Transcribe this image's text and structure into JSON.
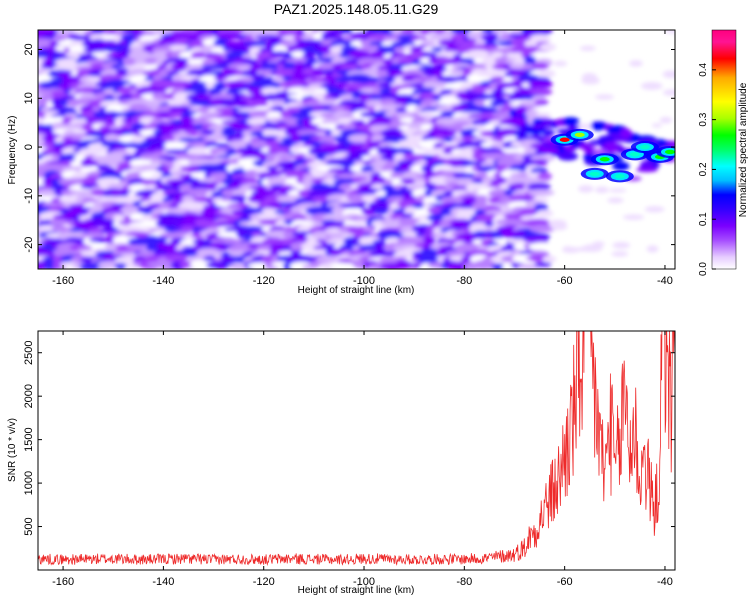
{
  "chart_data": [
    {
      "type": "heatmap",
      "title": "PAZ1.2025.148.05.11.G29",
      "xlabel": "Height of straight line (km)",
      "ylabel": "Frequency (Hz)",
      "xlim": [
        -165,
        -38
      ],
      "ylim": [
        -25,
        24
      ],
      "xticks": [
        -160,
        -140,
        -120,
        -100,
        -80,
        -60,
        -40
      ],
      "yticks": [
        -20,
        -10,
        0,
        10,
        20
      ],
      "data_extent_x": [
        -165,
        -64
      ],
      "colorbar": {
        "label": "Normalized spectral amplitude",
        "range": [
          0,
          0.48
        ],
        "ticks": [
          0.0,
          0.1,
          0.2,
          0.3,
          0.4
        ],
        "colors": [
          "#ffffff",
          "#e6ccff",
          "#a64dff",
          "#7a00ff",
          "#3300ff",
          "#0000ff",
          "#00bfff",
          "#00ffff",
          "#00ff66",
          "#00ff00",
          "#aaff00",
          "#ffff00",
          "#ffaa00",
          "#ff0000",
          "#ff1493",
          "#ff007f"
        ]
      },
      "hotspots": [
        {
          "x": -60,
          "y": 1.5,
          "value": 0.45
        },
        {
          "x": -57,
          "y": 2.5,
          "value": 0.3
        },
        {
          "x": -52,
          "y": -2.5,
          "value": 0.25
        },
        {
          "x": -54,
          "y": -5.5,
          "value": 0.2
        },
        {
          "x": -49,
          "y": -6.0,
          "value": 0.22
        },
        {
          "x": -46,
          "y": -1.5,
          "value": 0.2
        },
        {
          "x": -44,
          "y": 0.0,
          "value": 0.22
        },
        {
          "x": -41,
          "y": -2.0,
          "value": 0.25
        },
        {
          "x": -39,
          "y": -1.0,
          "value": 0.28
        }
      ]
    },
    {
      "type": "line",
      "xlabel": "Height of straight line (km)",
      "ylabel": "SNR (10 * v/v)",
      "xlim": [
        -165,
        -38
      ],
      "ylim": [
        0,
        2750
      ],
      "xticks": [
        -160,
        -140,
        -120,
        -100,
        -80,
        -60,
        -40
      ],
      "yticks": [
        500,
        1000,
        1500,
        2000,
        2500
      ],
      "color": "#ee2a2a",
      "series": [
        {
          "x": [
            -165,
            -160,
            -155,
            -150,
            -145,
            -140,
            -135,
            -130,
            -125,
            -120,
            -115,
            -110,
            -105,
            -100,
            -95,
            -90,
            -85,
            -80,
            -75,
            -70,
            -68,
            -66,
            -64,
            -62,
            -61,
            -60,
            -59,
            -58,
            -57,
            -56,
            -55.5,
            -55,
            -54,
            -53,
            -52,
            -51,
            -50,
            -49,
            -48,
            -47,
            -46,
            -45,
            -44,
            -43,
            -42,
            -41,
            -40.5,
            -40,
            -39.5,
            -39,
            -38
          ],
          "values": [
            130,
            120,
            125,
            130,
            120,
            125,
            130,
            120,
            125,
            120,
            130,
            125,
            120,
            130,
            125,
            120,
            125,
            125,
            140,
            180,
            260,
            380,
            600,
            800,
            900,
            1150,
            1300,
            1600,
            2000,
            2400,
            2740,
            2200,
            1700,
            1300,
            900,
            1500,
            1000,
            1200,
            1800,
            1200,
            1400,
            900,
            1100,
            800,
            600,
            1000,
            2600,
            2000,
            2650,
            1500,
            2400
          ]
        }
      ]
    }
  ]
}
